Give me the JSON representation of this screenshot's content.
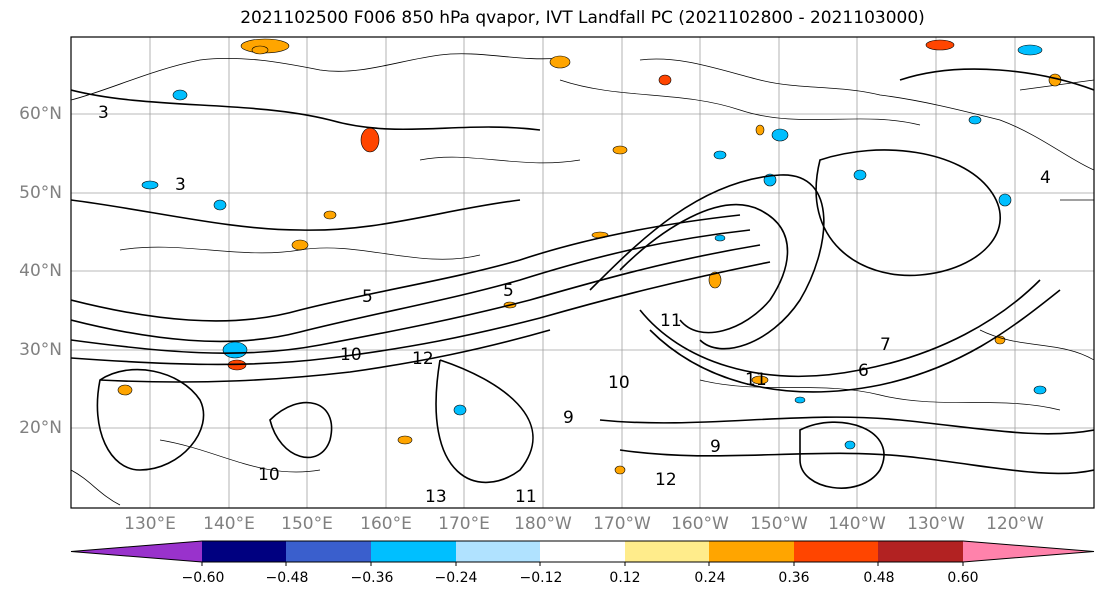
{
  "title": "2021102500 F006 850 hPa qvapor, IVT Landfall PC (2021102800 - 2021103000)",
  "lat_labels": [
    "60°N",
    "50°N",
    "40°N",
    "30°N",
    "20°N"
  ],
  "lon_labels": [
    "130°E",
    "140°E",
    "150°E",
    "160°E",
    "170°E",
    "180°W",
    "170°W",
    "160°W",
    "150°W",
    "140°W",
    "130°W",
    "120°W"
  ],
  "colorbar": {
    "colors": [
      "#9932cc",
      "#000080",
      "#3a5fcd",
      "#00bfff",
      "#b0e2ff",
      "#ffffff",
      "#ffec8b",
      "#ffa500",
      "#ff4500",
      "#b22222",
      "#ff82ab"
    ],
    "tick_labels": [
      "−0.60",
      "−0.48",
      "−0.36",
      "−0.24",
      "−0.12",
      "0.12",
      "0.24",
      "0.36",
      "0.48",
      "0.60"
    ]
  },
  "contour_labels": [
    "3",
    "3",
    "5",
    "5",
    "7",
    "10",
    "12",
    "11",
    "11",
    "10",
    "9",
    "10",
    "13",
    "11",
    "9",
    "6",
    "4",
    "12"
  ],
  "shade_colors": {
    "negative": "#00bfff",
    "positive": "#ffa500",
    "strong_positive": "#ff4500"
  }
}
